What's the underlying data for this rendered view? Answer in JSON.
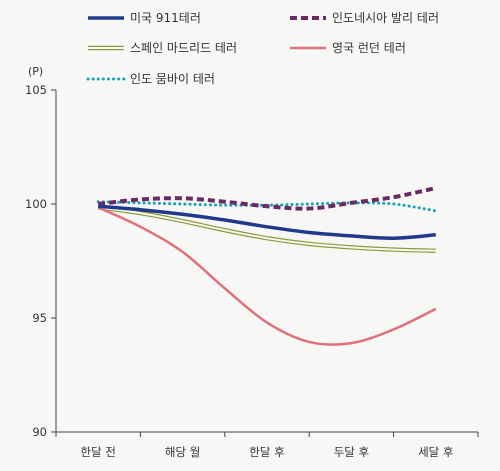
{
  "chart_data": {
    "type": "line",
    "unit_label": "(P)",
    "categories": [
      "한달 전",
      "해당 월",
      "한달 후",
      "두달 후",
      "세달 후"
    ],
    "yticks": [
      90,
      95,
      100,
      105
    ],
    "ylim": [
      90,
      105
    ],
    "grid": false,
    "legend_position": "top",
    "series": [
      {
        "name": "미국 911테러",
        "color": "#1f3a8c",
        "style": "solid-thick",
        "x": [
          0,
          0.5,
          1,
          1.5,
          2,
          2.5,
          3,
          3.5,
          4
        ],
        "values": [
          99.9,
          99.75,
          99.55,
          99.3,
          99.0,
          98.75,
          98.6,
          98.5,
          98.65
        ]
      },
      {
        "name": "인도네시아 발리 테러",
        "color": "#6b2a66",
        "style": "dashed",
        "x": [
          0,
          0.5,
          1,
          1.5,
          2,
          2.5,
          3,
          3.5,
          4
        ],
        "values": [
          100.0,
          100.2,
          100.25,
          100.1,
          99.9,
          99.8,
          100.05,
          100.3,
          100.7
        ]
      },
      {
        "name": "스페인 마드리드 테러",
        "color": "#8e9a3a",
        "style": "double",
        "x": [
          0,
          0.5,
          1,
          1.5,
          2,
          2.5,
          3,
          3.5,
          4
        ],
        "values": [
          99.85,
          99.6,
          99.25,
          98.85,
          98.5,
          98.25,
          98.1,
          98.0,
          97.95
        ]
      },
      {
        "name": "영국 런던 테러",
        "color": "#e0707a",
        "style": "solid",
        "x": [
          0,
          0.5,
          1,
          1.5,
          2,
          2.5,
          3,
          3.5,
          4
        ],
        "values": [
          99.85,
          99.0,
          97.9,
          96.3,
          94.8,
          93.95,
          93.9,
          94.5,
          95.4
        ]
      },
      {
        "name": "인도 뭄바이 테러",
        "color": "#1aa3b8",
        "style": "dotted",
        "x": [
          0,
          0.5,
          1,
          1.5,
          2,
          2.5,
          3,
          3.5,
          4
        ],
        "values": [
          100.1,
          100.05,
          100.0,
          99.95,
          99.95,
          100.0,
          100.05,
          100.0,
          99.7
        ]
      }
    ]
  }
}
